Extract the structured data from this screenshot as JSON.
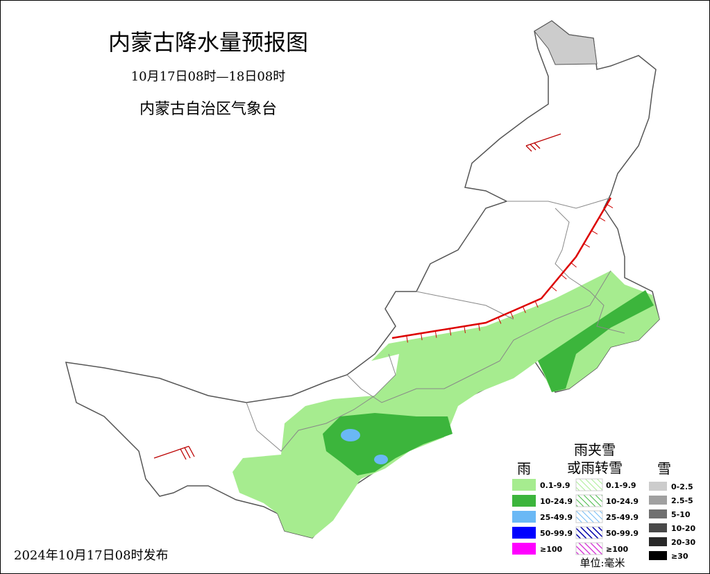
{
  "header": {
    "title": "内蒙古降水量预报图",
    "period": "10月17日08时—18日08时",
    "issuer": "内蒙古自治区气象台"
  },
  "footer": {
    "release": "2024年10月17日08时发布"
  },
  "legend": {
    "rain": {
      "title": "雨",
      "items": [
        "0.1-9.9",
        "10-24.9",
        "25-49.9",
        "50-99.9",
        "≥100"
      ]
    },
    "mixed": {
      "title_line1": "雨夹雪",
      "title_line2": "或雨转雪",
      "items": [
        "0.1-9.9",
        "10-24.9",
        "25-49.9",
        "50-99.9",
        "≥100"
      ]
    },
    "snow": {
      "title": "雪",
      "items": [
        "0-2.5",
        "2.5-5",
        "5-10",
        "10-20",
        "20-30",
        "≥30"
      ]
    },
    "unit": "单位:毫米"
  }
}
